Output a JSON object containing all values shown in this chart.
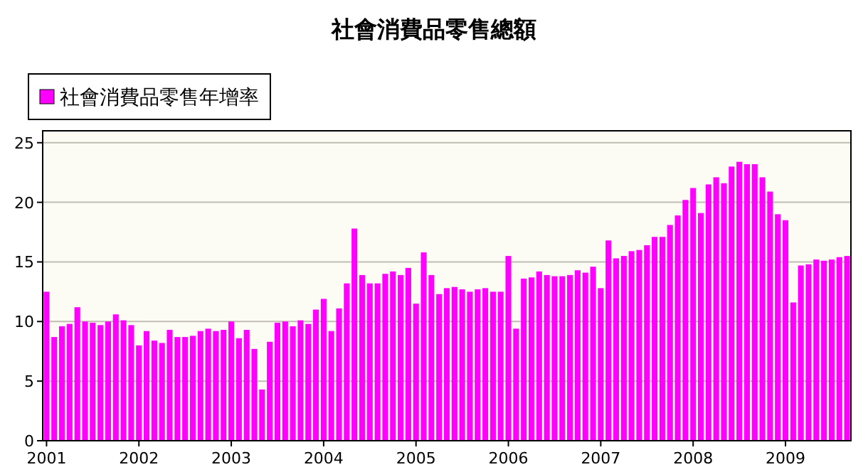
{
  "chart_data": {
    "type": "bar",
    "title": "社會消費品零售總額",
    "categories": [
      "2001",
      null,
      null,
      null,
      null,
      null,
      null,
      null,
      null,
      null,
      null,
      null,
      "2002",
      null,
      null,
      null,
      null,
      null,
      null,
      null,
      null,
      null,
      null,
      null,
      "2003",
      null,
      null,
      null,
      null,
      null,
      null,
      null,
      null,
      null,
      null,
      null,
      "2004",
      null,
      null,
      null,
      null,
      null,
      null,
      null,
      null,
      null,
      null,
      null,
      "2005",
      null,
      null,
      null,
      null,
      null,
      null,
      null,
      null,
      null,
      null,
      null,
      "2006",
      null,
      null,
      null,
      null,
      null,
      null,
      null,
      null,
      null,
      null,
      null,
      "2007",
      null,
      null,
      null,
      null,
      null,
      null,
      null,
      null,
      null,
      null,
      null,
      "2008",
      null,
      null,
      null,
      null,
      null,
      null,
      null,
      null,
      null,
      null,
      null,
      "2009",
      null,
      null,
      null,
      null,
      null,
      null,
      null,
      null
    ],
    "series": [
      {
        "name": "社會消費品零售年增率",
        "color": "#ff00ff",
        "values": [
          12.5,
          8.7,
          9.6,
          9.8,
          11.2,
          10.0,
          9.9,
          9.7,
          10.0,
          10.6,
          10.1,
          9.7,
          8.0,
          9.2,
          8.4,
          8.2,
          9.3,
          8.7,
          8.7,
          8.8,
          9.2,
          9.4,
          9.2,
          9.3,
          10.0,
          8.6,
          9.3,
          7.7,
          4.3,
          8.3,
          9.9,
          10.0,
          9.6,
          10.1,
          9.8,
          11.0,
          11.9,
          9.2,
          11.1,
          13.2,
          17.8,
          13.9,
          13.2,
          13.2,
          14.0,
          14.2,
          13.9,
          14.5,
          11.5,
          15.8,
          13.9,
          12.3,
          12.8,
          12.9,
          12.7,
          12.5,
          12.7,
          12.8,
          12.5,
          12.5,
          15.5,
          9.4,
          13.6,
          13.7,
          14.2,
          13.9,
          13.8,
          13.8,
          13.9,
          14.3,
          14.1,
          14.6,
          12.8,
          16.8,
          15.3,
          15.5,
          15.9,
          16.0,
          16.4,
          17.1,
          17.1,
          18.1,
          18.9,
          20.2,
          21.2,
          19.1,
          21.5,
          22.1,
          21.6,
          23.0,
          23.4,
          23.2,
          23.2,
          22.1,
          20.9,
          19.0,
          18.5,
          11.6,
          14.7,
          14.8,
          15.2,
          15.1,
          15.2,
          15.4,
          15.5
        ]
      }
    ],
    "ylim": [
      0,
      26
    ],
    "yticks": [
      0,
      5,
      10,
      15,
      20,
      25
    ],
    "grid": "y",
    "legend": "top left"
  }
}
